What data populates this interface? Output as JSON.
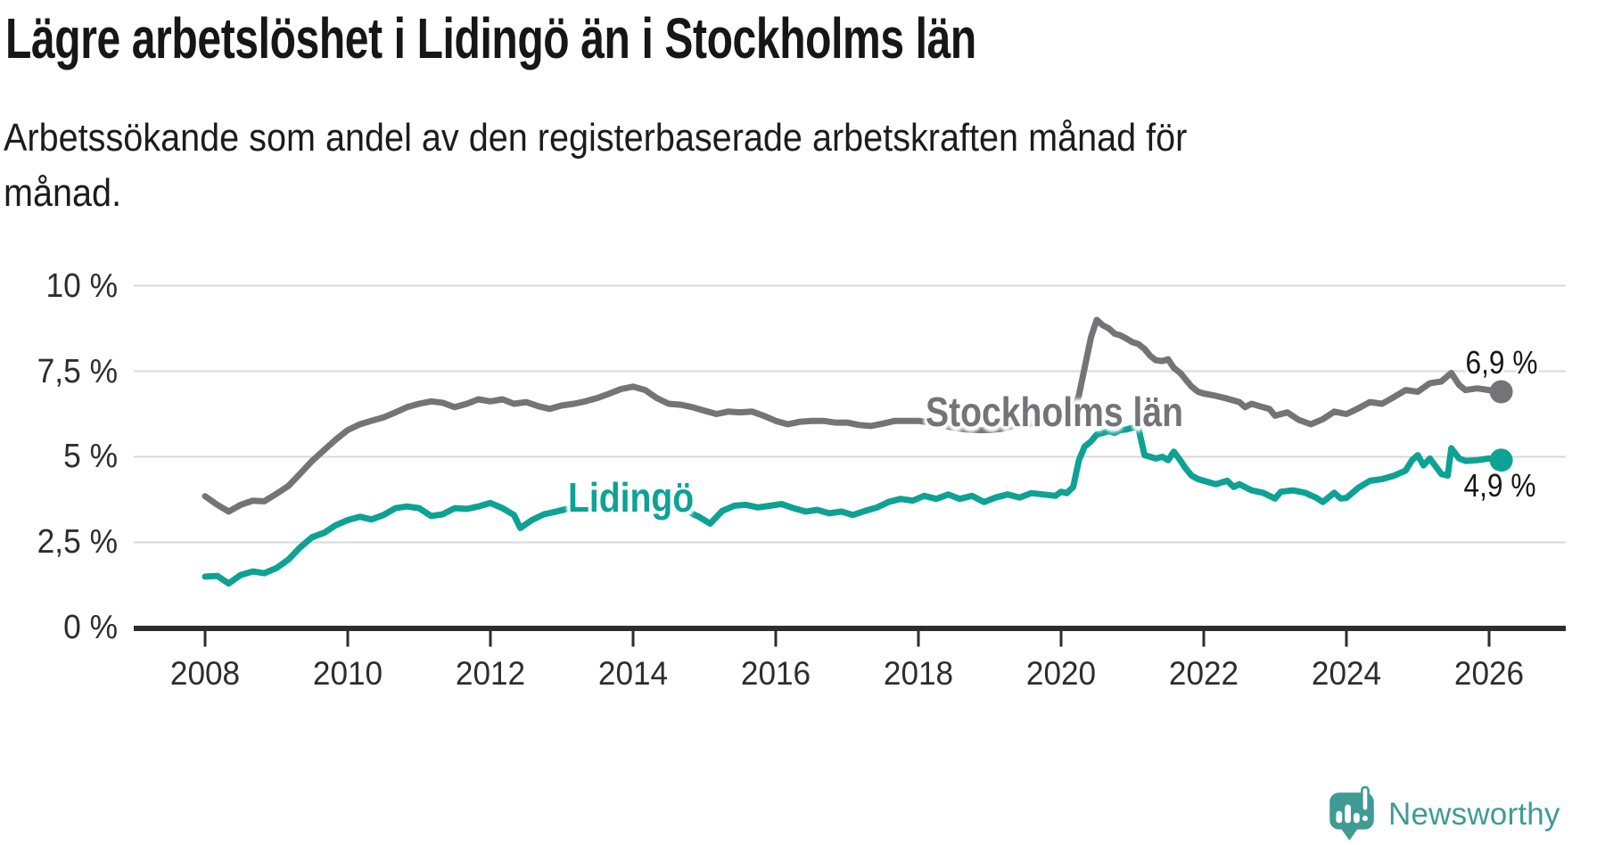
{
  "branding": {
    "name": "Newsworthy",
    "logo_color": "#3f9b94"
  },
  "chart_data": {
    "type": "line",
    "title": "Lägre arbetslöshet i Lidingö än i Stockholms län",
    "subtitle_line1": "Arbetssökande som andel av den registerbaserade arbetskraften månad för",
    "subtitle_line2": "månad.",
    "unit": "%",
    "grid": "horizontal",
    "legend_position": "inline-labels",
    "xlim": [
      2007.0,
      2027.1
    ],
    "ylim": [
      0,
      10.4
    ],
    "style": {
      "grid_color": "#d8d8d8",
      "axis_color": "#2d2d2d",
      "background": "#ffffff"
    },
    "y_axis": {
      "ticks": [
        {
          "label": "10 %",
          "value": 10
        },
        {
          "label": "7,5 %",
          "value": 7.5
        },
        {
          "label": "5 %",
          "value": 5
        },
        {
          "label": "2,5 %",
          "value": 2.5
        },
        {
          "label": "0 %",
          "value": 0
        }
      ]
    },
    "x_axis": {
      "ticks": [
        {
          "label": "2008",
          "value": 2008
        },
        {
          "label": "2010",
          "value": 2010
        },
        {
          "label": "2012",
          "value": 2012
        },
        {
          "label": "2014",
          "value": 2014
        },
        {
          "label": "2016",
          "value": 2016
        },
        {
          "label": "2018",
          "value": 2018
        },
        {
          "label": "2020",
          "value": 2020
        },
        {
          "label": "2022",
          "value": 2022
        },
        {
          "label": "2024",
          "value": 2024
        },
        {
          "label": "2026",
          "value": 2026
        }
      ]
    },
    "series": [
      {
        "name": "Stockholms län",
        "color": "#747478",
        "end_label": "6,9 %",
        "end_value": 6.9,
        "points": [
          [
            2008.0,
            3.85
          ],
          [
            2008.17,
            3.6
          ],
          [
            2008.33,
            3.4
          ],
          [
            2008.5,
            3.6
          ],
          [
            2008.67,
            3.72
          ],
          [
            2008.83,
            3.7
          ],
          [
            2009.0,
            3.92
          ],
          [
            2009.17,
            4.15
          ],
          [
            2009.33,
            4.5
          ],
          [
            2009.5,
            4.88
          ],
          [
            2009.67,
            5.2
          ],
          [
            2009.83,
            5.5
          ],
          [
            2010.0,
            5.78
          ],
          [
            2010.17,
            5.95
          ],
          [
            2010.33,
            6.05
          ],
          [
            2010.5,
            6.15
          ],
          [
            2010.67,
            6.3
          ],
          [
            2010.83,
            6.45
          ],
          [
            2011.0,
            6.55
          ],
          [
            2011.17,
            6.62
          ],
          [
            2011.33,
            6.58
          ],
          [
            2011.5,
            6.45
          ],
          [
            2011.67,
            6.55
          ],
          [
            2011.83,
            6.68
          ],
          [
            2012.0,
            6.62
          ],
          [
            2012.17,
            6.68
          ],
          [
            2012.33,
            6.55
          ],
          [
            2012.5,
            6.6
          ],
          [
            2012.67,
            6.48
          ],
          [
            2012.83,
            6.4
          ],
          [
            2013.0,
            6.5
          ],
          [
            2013.17,
            6.55
          ],
          [
            2013.33,
            6.62
          ],
          [
            2013.5,
            6.72
          ],
          [
            2013.67,
            6.85
          ],
          [
            2013.83,
            6.98
          ],
          [
            2014.0,
            7.05
          ],
          [
            2014.17,
            6.95
          ],
          [
            2014.33,
            6.72
          ],
          [
            2014.5,
            6.55
          ],
          [
            2014.67,
            6.52
          ],
          [
            2014.83,
            6.45
          ],
          [
            2015.0,
            6.35
          ],
          [
            2015.17,
            6.25
          ],
          [
            2015.33,
            6.32
          ],
          [
            2015.5,
            6.3
          ],
          [
            2015.67,
            6.32
          ],
          [
            2015.83,
            6.2
          ],
          [
            2016.0,
            6.05
          ],
          [
            2016.17,
            5.95
          ],
          [
            2016.33,
            6.02
          ],
          [
            2016.5,
            6.05
          ],
          [
            2016.67,
            6.05
          ],
          [
            2016.83,
            6.0
          ],
          [
            2017.0,
            6.0
          ],
          [
            2017.17,
            5.93
          ],
          [
            2017.33,
            5.9
          ],
          [
            2017.5,
            5.97
          ],
          [
            2017.67,
            6.05
          ],
          [
            2017.83,
            6.05
          ],
          [
            2018.0,
            6.05
          ],
          [
            2018.17,
            6.0
          ],
          [
            2018.33,
            5.92
          ],
          [
            2018.5,
            5.85
          ],
          [
            2018.67,
            5.8
          ],
          [
            2018.83,
            5.78
          ],
          [
            2019.0,
            5.78
          ],
          [
            2019.17,
            5.82
          ],
          [
            2019.33,
            5.9
          ],
          [
            2019.5,
            5.95
          ],
          [
            2019.67,
            6.0
          ],
          [
            2019.83,
            6.05
          ],
          [
            2020.0,
            6.1
          ],
          [
            2020.17,
            6.35
          ],
          [
            2020.25,
            6.8
          ],
          [
            2020.33,
            7.6
          ],
          [
            2020.42,
            8.5
          ],
          [
            2020.5,
            9.0
          ],
          [
            2020.58,
            8.85
          ],
          [
            2020.67,
            8.75
          ],
          [
            2020.75,
            8.6
          ],
          [
            2020.83,
            8.55
          ],
          [
            2020.92,
            8.45
          ],
          [
            2021.0,
            8.35
          ],
          [
            2021.08,
            8.3
          ],
          [
            2021.17,
            8.15
          ],
          [
            2021.25,
            7.95
          ],
          [
            2021.33,
            7.82
          ],
          [
            2021.42,
            7.8
          ],
          [
            2021.5,
            7.85
          ],
          [
            2021.58,
            7.6
          ],
          [
            2021.67,
            7.45
          ],
          [
            2021.75,
            7.25
          ],
          [
            2021.83,
            7.05
          ],
          [
            2021.92,
            6.9
          ],
          [
            2022.0,
            6.85
          ],
          [
            2022.17,
            6.78
          ],
          [
            2022.33,
            6.7
          ],
          [
            2022.5,
            6.6
          ],
          [
            2022.58,
            6.45
          ],
          [
            2022.67,
            6.55
          ],
          [
            2022.83,
            6.45
          ],
          [
            2022.92,
            6.4
          ],
          [
            2023.0,
            6.2
          ],
          [
            2023.17,
            6.3
          ],
          [
            2023.33,
            6.08
          ],
          [
            2023.5,
            5.95
          ],
          [
            2023.67,
            6.1
          ],
          [
            2023.83,
            6.32
          ],
          [
            2024.0,
            6.25
          ],
          [
            2024.17,
            6.42
          ],
          [
            2024.33,
            6.6
          ],
          [
            2024.5,
            6.55
          ],
          [
            2024.67,
            6.75
          ],
          [
            2024.83,
            6.95
          ],
          [
            2025.0,
            6.9
          ],
          [
            2025.17,
            7.15
          ],
          [
            2025.33,
            7.2
          ],
          [
            2025.47,
            7.45
          ],
          [
            2025.58,
            7.1
          ],
          [
            2025.67,
            6.95
          ],
          [
            2025.83,
            7.0
          ],
          [
            2026.0,
            6.95
          ],
          [
            2026.17,
            6.9
          ]
        ]
      },
      {
        "name": "Lidingö",
        "color": "#0da294",
        "end_label": "4,9 %",
        "end_value": 4.9,
        "points": [
          [
            2008.0,
            1.5
          ],
          [
            2008.17,
            1.52
          ],
          [
            2008.33,
            1.3
          ],
          [
            2008.5,
            1.55
          ],
          [
            2008.67,
            1.65
          ],
          [
            2008.83,
            1.6
          ],
          [
            2009.0,
            1.75
          ],
          [
            2009.17,
            2.0
          ],
          [
            2009.33,
            2.35
          ],
          [
            2009.5,
            2.65
          ],
          [
            2009.67,
            2.78
          ],
          [
            2009.83,
            3.0
          ],
          [
            2010.0,
            3.15
          ],
          [
            2010.17,
            3.25
          ],
          [
            2010.33,
            3.17
          ],
          [
            2010.5,
            3.3
          ],
          [
            2010.67,
            3.5
          ],
          [
            2010.83,
            3.55
          ],
          [
            2011.0,
            3.5
          ],
          [
            2011.17,
            3.27
          ],
          [
            2011.33,
            3.32
          ],
          [
            2011.5,
            3.5
          ],
          [
            2011.67,
            3.48
          ],
          [
            2011.83,
            3.55
          ],
          [
            2012.0,
            3.65
          ],
          [
            2012.17,
            3.5
          ],
          [
            2012.33,
            3.3
          ],
          [
            2012.42,
            2.92
          ],
          [
            2012.58,
            3.15
          ],
          [
            2012.75,
            3.32
          ],
          [
            2012.92,
            3.4
          ],
          [
            2013.08,
            3.48
          ],
          [
            2013.25,
            3.55
          ],
          [
            2013.42,
            3.58
          ],
          [
            2013.58,
            3.62
          ],
          [
            2013.75,
            3.65
          ],
          [
            2013.92,
            3.62
          ],
          [
            2014.08,
            3.65
          ],
          [
            2014.25,
            3.6
          ],
          [
            2014.42,
            3.58
          ],
          [
            2014.58,
            3.52
          ],
          [
            2014.75,
            3.42
          ],
          [
            2014.92,
            3.25
          ],
          [
            2015.08,
            3.05
          ],
          [
            2015.25,
            3.42
          ],
          [
            2015.42,
            3.57
          ],
          [
            2015.58,
            3.6
          ],
          [
            2015.75,
            3.52
          ],
          [
            2015.92,
            3.57
          ],
          [
            2016.08,
            3.62
          ],
          [
            2016.25,
            3.5
          ],
          [
            2016.42,
            3.4
          ],
          [
            2016.58,
            3.45
          ],
          [
            2016.75,
            3.35
          ],
          [
            2016.92,
            3.4
          ],
          [
            2017.08,
            3.3
          ],
          [
            2017.25,
            3.42
          ],
          [
            2017.42,
            3.52
          ],
          [
            2017.58,
            3.68
          ],
          [
            2017.75,
            3.77
          ],
          [
            2017.92,
            3.72
          ],
          [
            2018.08,
            3.86
          ],
          [
            2018.25,
            3.77
          ],
          [
            2018.42,
            3.9
          ],
          [
            2018.58,
            3.77
          ],
          [
            2018.75,
            3.86
          ],
          [
            2018.92,
            3.68
          ],
          [
            2019.08,
            3.81
          ],
          [
            2019.25,
            3.9
          ],
          [
            2019.42,
            3.81
          ],
          [
            2019.58,
            3.94
          ],
          [
            2019.75,
            3.9
          ],
          [
            2019.92,
            3.86
          ],
          [
            2020.0,
            3.98
          ],
          [
            2020.08,
            3.94
          ],
          [
            2020.17,
            4.12
          ],
          [
            2020.25,
            4.9
          ],
          [
            2020.33,
            5.3
          ],
          [
            2020.42,
            5.45
          ],
          [
            2020.5,
            5.65
          ],
          [
            2020.58,
            5.7
          ],
          [
            2020.67,
            5.75
          ],
          [
            2020.75,
            5.7
          ],
          [
            2020.83,
            5.78
          ],
          [
            2020.92,
            5.8
          ],
          [
            2021.0,
            5.85
          ],
          [
            2021.08,
            5.88
          ],
          [
            2021.17,
            5.05
          ],
          [
            2021.25,
            5.0
          ],
          [
            2021.33,
            4.95
          ],
          [
            2021.42,
            5.0
          ],
          [
            2021.5,
            4.9
          ],
          [
            2021.58,
            5.15
          ],
          [
            2021.67,
            4.9
          ],
          [
            2021.75,
            4.65
          ],
          [
            2021.83,
            4.45
          ],
          [
            2021.92,
            4.35
          ],
          [
            2022.0,
            4.3
          ],
          [
            2022.17,
            4.2
          ],
          [
            2022.33,
            4.3
          ],
          [
            2022.42,
            4.12
          ],
          [
            2022.5,
            4.2
          ],
          [
            2022.67,
            4.02
          ],
          [
            2022.83,
            3.95
          ],
          [
            2023.0,
            3.78
          ],
          [
            2023.08,
            3.98
          ],
          [
            2023.25,
            4.02
          ],
          [
            2023.42,
            3.95
          ],
          [
            2023.58,
            3.8
          ],
          [
            2023.67,
            3.68
          ],
          [
            2023.83,
            3.95
          ],
          [
            2023.92,
            3.78
          ],
          [
            2024.0,
            3.8
          ],
          [
            2024.17,
            4.1
          ],
          [
            2024.33,
            4.3
          ],
          [
            2024.5,
            4.35
          ],
          [
            2024.67,
            4.45
          ],
          [
            2024.83,
            4.6
          ],
          [
            2024.92,
            4.9
          ],
          [
            2025.0,
            5.05
          ],
          [
            2025.08,
            4.75
          ],
          [
            2025.17,
            4.95
          ],
          [
            2025.33,
            4.5
          ],
          [
            2025.42,
            4.45
          ],
          [
            2025.47,
            5.25
          ],
          [
            2025.58,
            4.95
          ],
          [
            2025.67,
            4.88
          ],
          [
            2025.83,
            4.9
          ],
          [
            2026.0,
            4.95
          ],
          [
            2026.17,
            4.9
          ]
        ]
      }
    ]
  }
}
